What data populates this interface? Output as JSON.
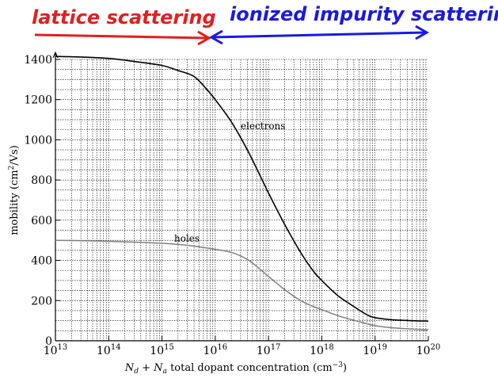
{
  "chart_data": {
    "type": "line",
    "xscale": "log",
    "xlim": [
      10000000000000.0,
      1e+20
    ],
    "ylim": [
      0,
      1400
    ],
    "grid": true,
    "xlabel_parts": {
      "n1": "N",
      "s1": "d",
      "op": " + ",
      "n2": "N",
      "s2": "a",
      "text": " total dopant concentration (cm",
      "sup": "−3",
      "close": ")"
    },
    "ylabel_parts": {
      "text": "mobility (cm",
      "sup": "2",
      "close": "/Vs)"
    },
    "x_ticks": [
      {
        "base": "10",
        "exp": "13",
        "value": 10000000000000.0
      },
      {
        "base": "10",
        "exp": "14",
        "value": 100000000000000.0
      },
      {
        "base": "10",
        "exp": "15",
        "value": 1000000000000000.0
      },
      {
        "base": "10",
        "exp": "16",
        "value": 1e+16
      },
      {
        "base": "10",
        "exp": "17",
        "value": 1e+17
      },
      {
        "base": "10",
        "exp": "18",
        "value": 1e+18
      },
      {
        "base": "10",
        "exp": "19",
        "value": 1e+19
      },
      {
        "base": "10",
        "exp": "20",
        "value": 1e+20
      }
    ],
    "y_ticks": [
      "0",
      "200",
      "400",
      "600",
      "800",
      "1000",
      "1200",
      "1400"
    ],
    "series": [
      {
        "name": "electrons",
        "color": "#000000",
        "x": [
          10000000000000.0,
          30000000000000.0,
          100000000000000.0,
          300000000000000.0,
          1000000000000000.0,
          2000000000000000.0,
          4000000000000000.0,
          7000000000000000.0,
          1e+16,
          2e+16,
          4e+16,
          7e+16,
          1e+17,
          2e+17,
          4e+17,
          7e+17,
          1e+18,
          2e+18,
          4e+18,
          7e+18,
          1e+19,
          2e+19,
          5e+19,
          1e+20
        ],
        "y": [
          1415,
          1412,
          1405,
          1390,
          1370,
          1345,
          1315,
          1250,
          1200,
          1090,
          950,
          820,
          735,
          580,
          440,
          345,
          300,
          225,
          170,
          130,
          115,
          105,
          100,
          98
        ]
      },
      {
        "name": "holes",
        "color": "#808080",
        "x": [
          10000000000000.0,
          100000000000000.0,
          1000000000000000.0,
          3000000000000000.0,
          1e+16,
          2e+16,
          4e+16,
          7e+16,
          1e+17,
          2e+17,
          4e+17,
          7e+17,
          1e+18,
          2e+18,
          5e+18,
          1e+19,
          2e+19,
          5e+19,
          1e+20
        ],
        "y": [
          500,
          495,
          485,
          475,
          455,
          440,
          405,
          355,
          320,
          255,
          200,
          170,
          155,
          125,
          95,
          75,
          65,
          58,
          55
        ]
      }
    ],
    "annotations": [
      {
        "text": "electrons",
        "x": 5e+16,
        "y": 1065
      },
      {
        "text": "holes",
        "x": 2500000000000000.0,
        "y": 500
      }
    ],
    "regions": [
      {
        "label": "lattice scattering",
        "color": "#e02020",
        "x_from": 10000000000000.0,
        "x_to": 1e+16
      },
      {
        "label": "ionized impurity scattering",
        "color": "#1a1ae0",
        "x_from": 1e+16,
        "x_to": 1e+20
      }
    ]
  }
}
